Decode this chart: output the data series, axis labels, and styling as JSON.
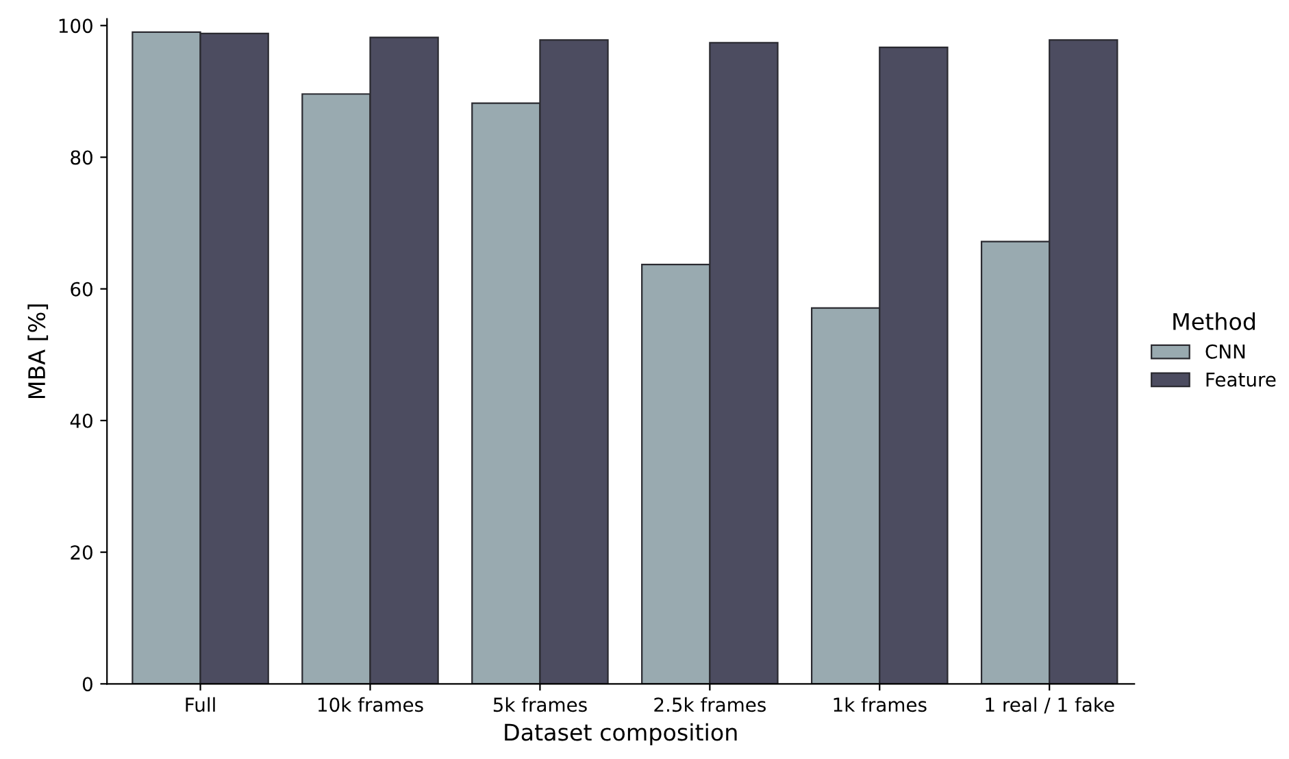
{
  "chart_data": {
    "type": "bar",
    "xlabel": "Dataset composition",
    "ylabel": "MBA [%]",
    "legend_title": "Method",
    "legend": "right",
    "categories": [
      "Full",
      "10k frames",
      "5k frames",
      "2.5k frames",
      "1k frames",
      "1 real / 1 fake"
    ],
    "series": [
      {
        "name": "CNN",
        "color": "#99aab0",
        "values": [
          99.0,
          89.6,
          88.2,
          63.7,
          57.1,
          67.2
        ]
      },
      {
        "name": "Feature",
        "color": "#4c4c60",
        "values": [
          98.8,
          98.2,
          97.8,
          97.4,
          96.7,
          97.8
        ]
      }
    ],
    "ylim": [
      0,
      101
    ],
    "yticks": [
      0,
      20,
      40,
      60,
      80,
      100
    ],
    "grid": false
  }
}
